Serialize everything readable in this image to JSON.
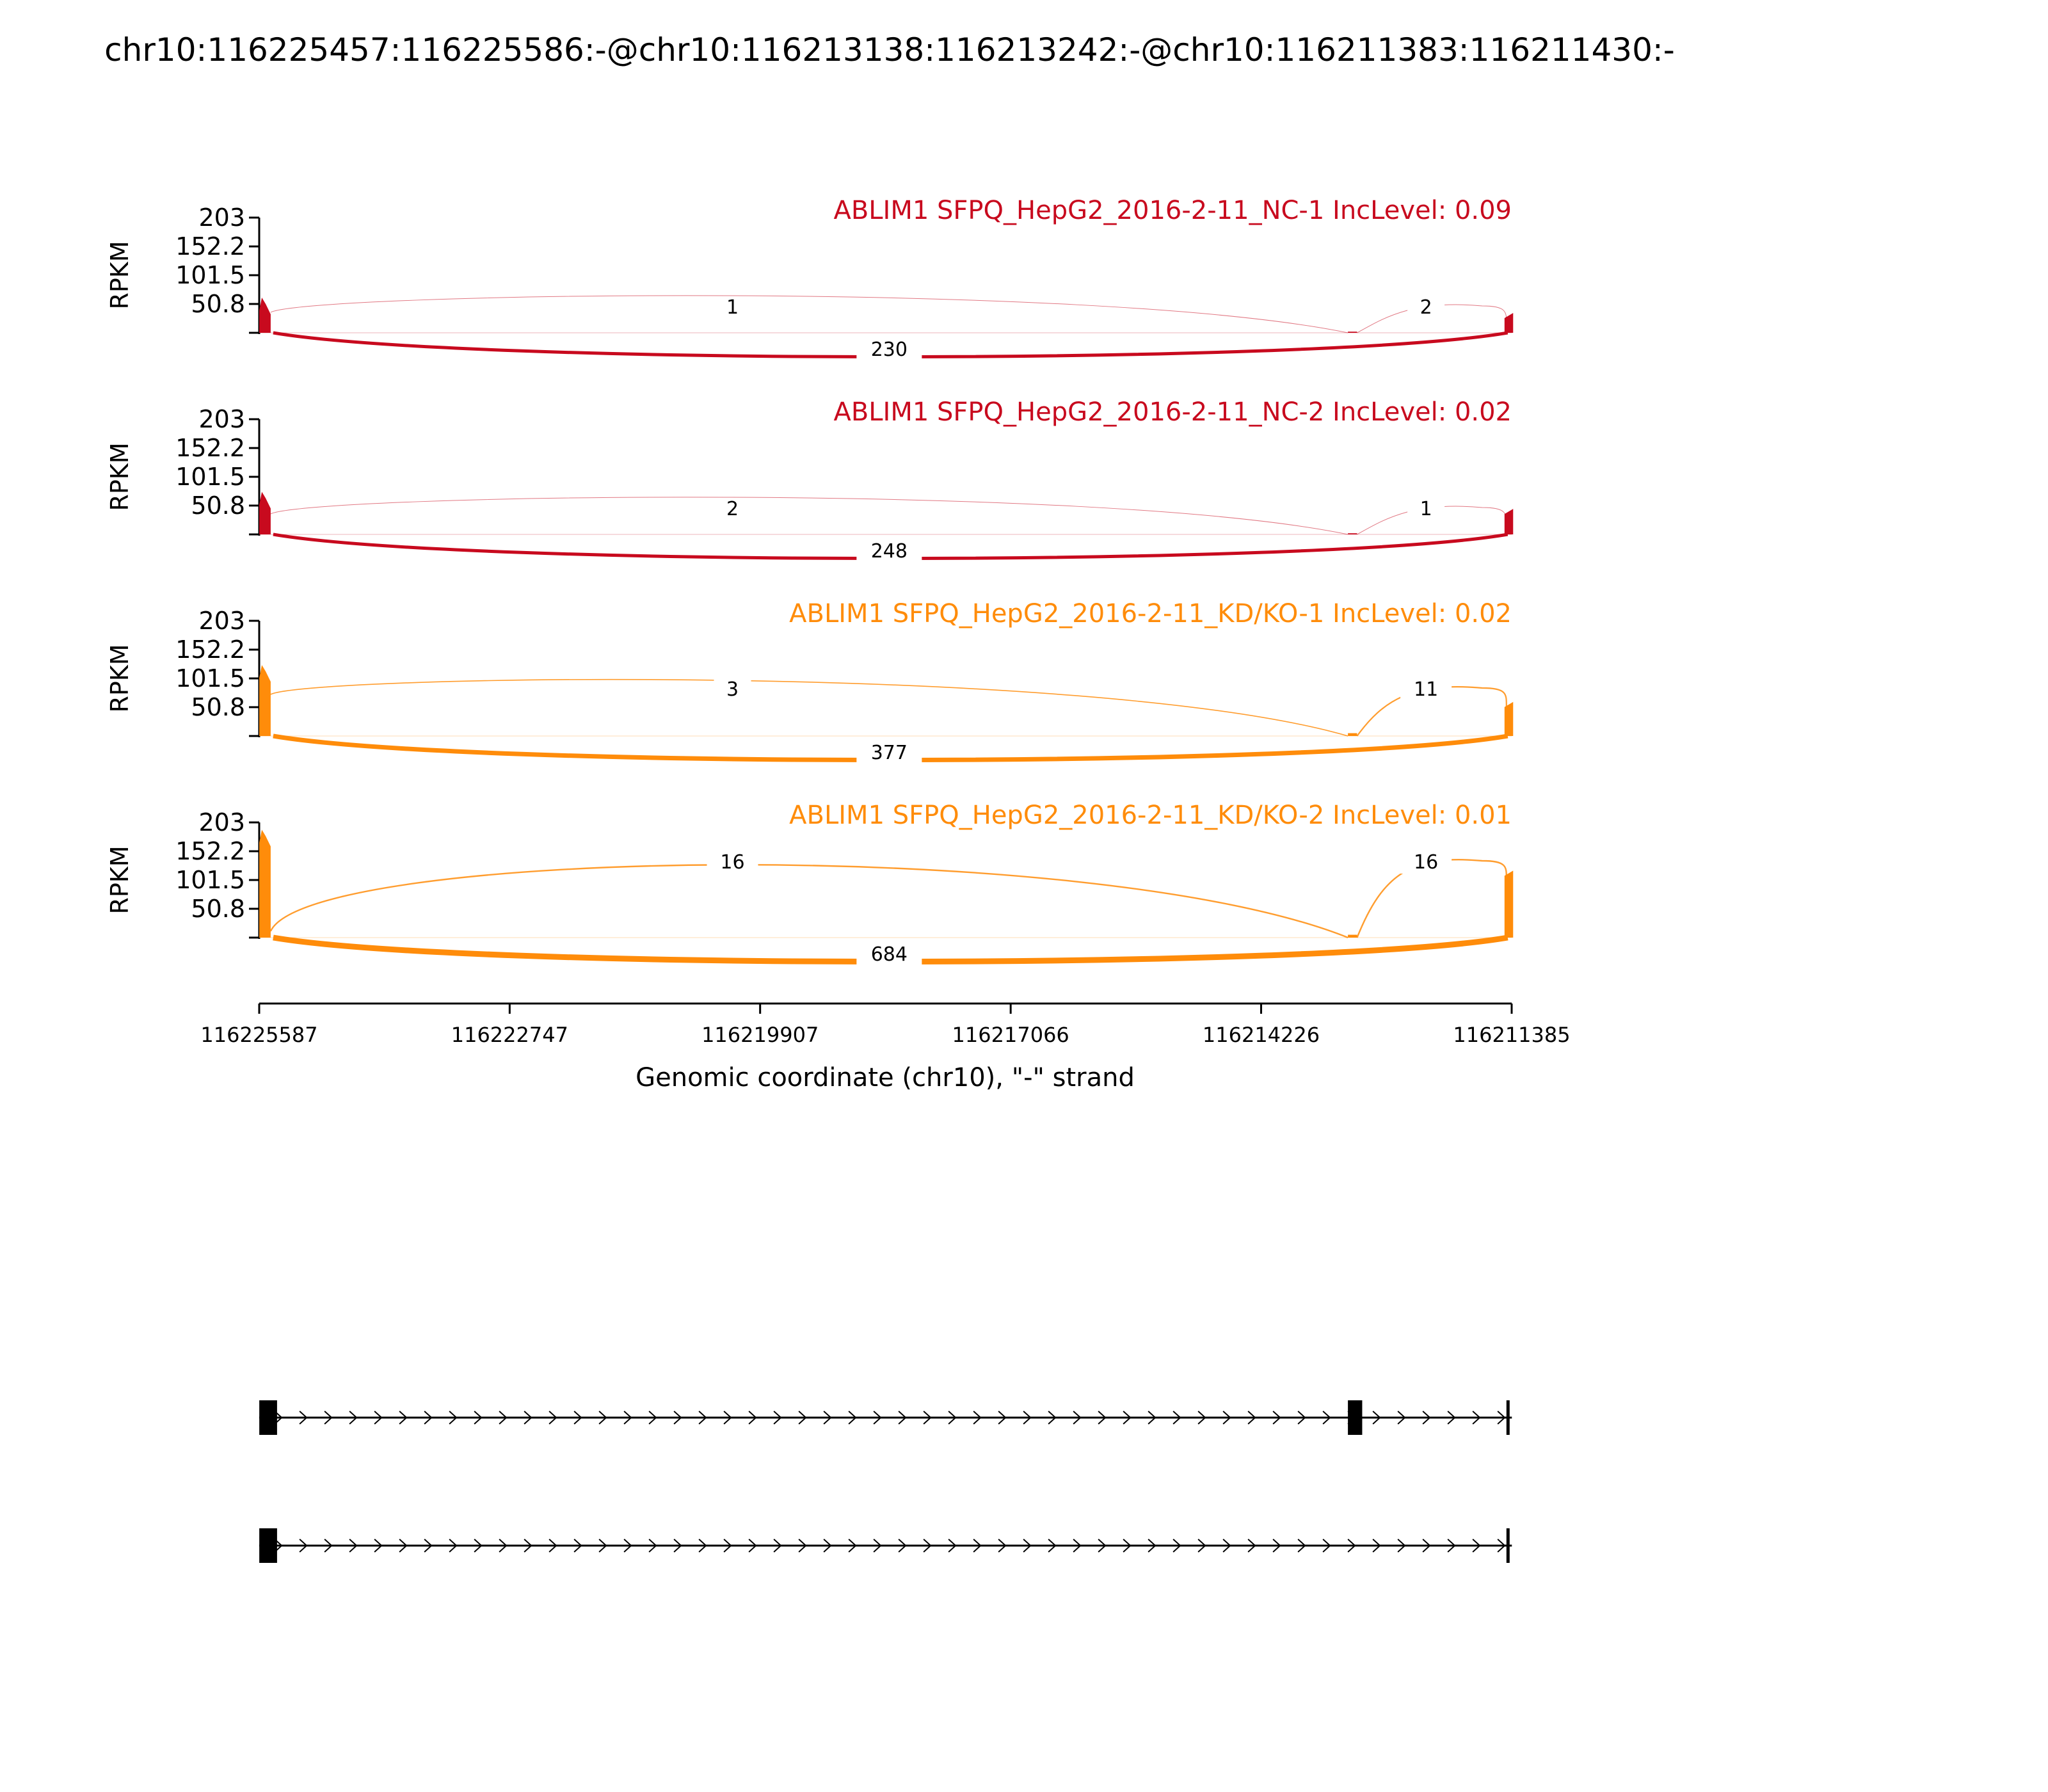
{
  "chart_data": {
    "type": "sashimi",
    "title": "chr10:116225457:116225586:-@chr10:116213138:116213242:-@chr10:116211383:116211430:-",
    "ylabel": "RPKM",
    "xlabel": "Genomic coordinate (chr10), \"-\" strand",
    "yticks": [
      "203",
      "152.2",
      "101.5",
      "50.8"
    ],
    "ylim": [
      0,
      203
    ],
    "xlim": [
      116225587,
      116211385
    ],
    "xticks": [
      "116225587",
      "116222747",
      "116219907",
      "116217066",
      "116214226",
      "116211385"
    ],
    "exons": [
      {
        "start": 116225586,
        "end": 116225457
      },
      {
        "start": 116213242,
        "end": 116213138
      },
      {
        "start": 116211430,
        "end": 116211383
      }
    ],
    "series": [
      {
        "name": "ABLIM1 SFPQ_HepG2_2016-2-11_NC-1 IncLevel: 0.09",
        "color": "#c80a1e",
        "peaks": {
          "exon1": 62,
          "exon2": 2,
          "exon3": 35
        },
        "junctions": {
          "skip": "230",
          "upstream": "1",
          "downstream": "2"
        }
      },
      {
        "name": "ABLIM1 SFPQ_HepG2_2016-2-11_NC-2 IncLevel: 0.02",
        "color": "#c80a1e",
        "peaks": {
          "exon1": 75,
          "exon2": 2,
          "exon3": 45
        },
        "junctions": {
          "skip": "248",
          "upstream": "2",
          "downstream": "1"
        }
      },
      {
        "name": "ABLIM1 SFPQ_HepG2_2016-2-11_KD/KO-1 IncLevel: 0.02",
        "color": "#ff8c0a",
        "peaks": {
          "exon1": 125,
          "exon2": 5,
          "exon3": 60
        },
        "junctions": {
          "skip": "377",
          "upstream": "3",
          "downstream": "11"
        }
      },
      {
        "name": "ABLIM1 SFPQ_HepG2_2016-2-11_KD/KO-2 IncLevel: 0.01",
        "color": "#ff8c0a",
        "peaks": {
          "exon1": 190,
          "exon2": 5,
          "exon3": 118
        },
        "junctions": {
          "skip": "684",
          "upstream": "16",
          "downstream": "16"
        }
      }
    ],
    "isoforms": [
      {
        "exons": [
          "exon1",
          "exon2",
          "exon3"
        ]
      },
      {
        "exons": [
          "exon1",
          "exon3"
        ]
      }
    ]
  }
}
